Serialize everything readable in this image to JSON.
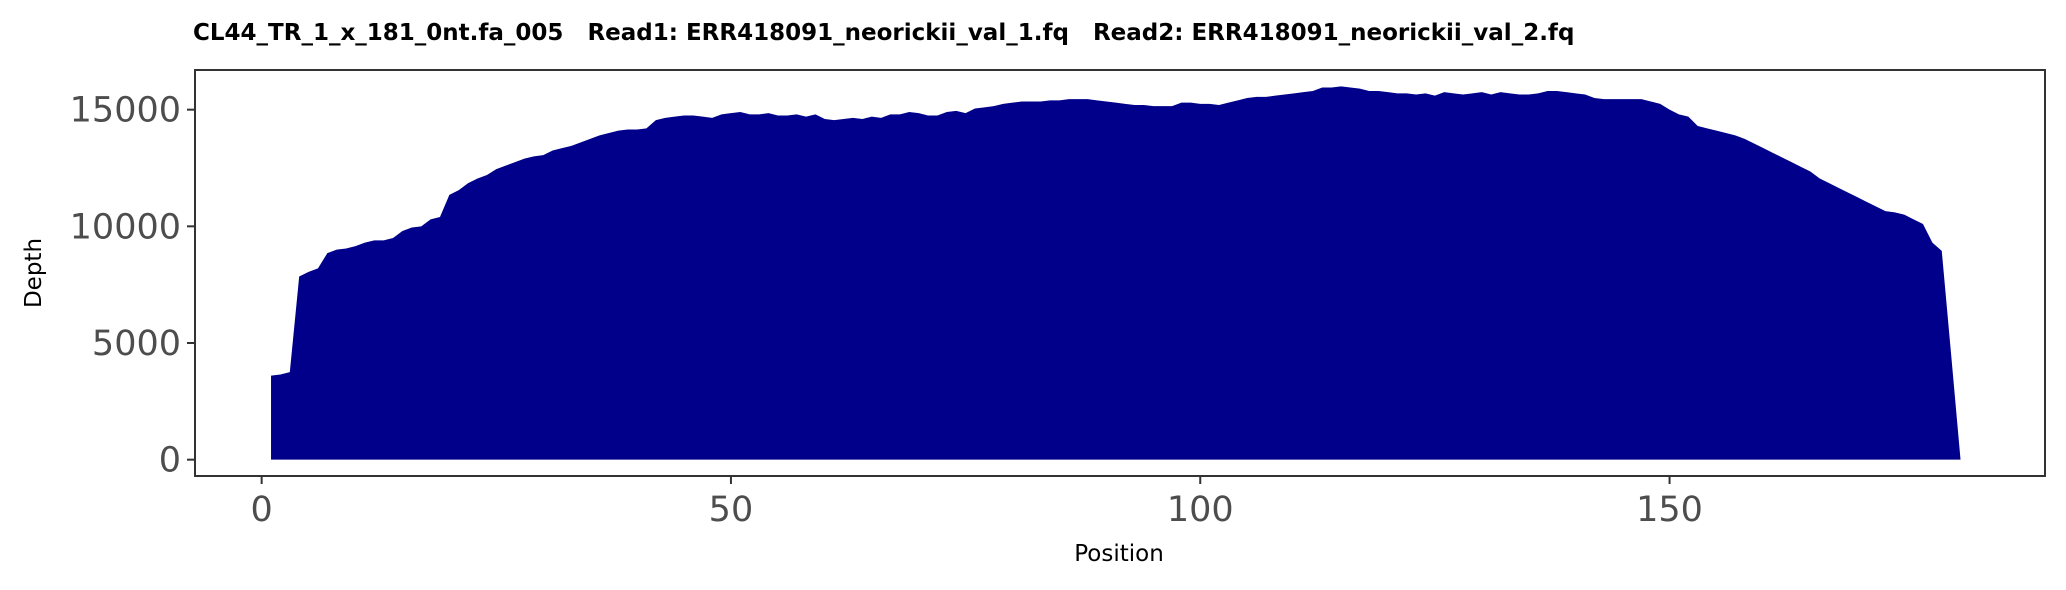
{
  "chart_data": {
    "type": "area",
    "title": "CL44_TR_1_x_181_0nt.fa_005   Read1: ERR418091_neorickii_val_1.fq   Read2: ERR418091_neorickii_val_2.fq",
    "xlabel": "Position",
    "ylabel": "Depth",
    "xlim": [
      -7.1,
      190
    ],
    "ylim": [
      -700,
      16700
    ],
    "xticks": [
      0,
      50,
      100,
      150
    ],
    "yticks": [
      0,
      5000,
      10000,
      15000
    ],
    "xtick_labels": [
      "0",
      "50",
      "100",
      "150"
    ],
    "ytick_labels": [
      "0",
      "5000",
      "10000",
      "15000"
    ],
    "grid": false,
    "legend": "none",
    "fill_color": "#00008B",
    "x": [
      1,
      2,
      3,
      4,
      5,
      6,
      7,
      8,
      9,
      10,
      11,
      12,
      13,
      14,
      15,
      16,
      17,
      18,
      19,
      20,
      21,
      22,
      23,
      24,
      25,
      26,
      27,
      28,
      29,
      30,
      31,
      32,
      33,
      34,
      35,
      36,
      37,
      38,
      39,
      40,
      41,
      42,
      43,
      44,
      45,
      46,
      47,
      48,
      49,
      50,
      51,
      52,
      53,
      54,
      55,
      56,
      57,
      58,
      59,
      60,
      61,
      62,
      63,
      64,
      65,
      66,
      67,
      68,
      69,
      70,
      71,
      72,
      73,
      74,
      75,
      76,
      77,
      78,
      79,
      80,
      81,
      82,
      83,
      84,
      85,
      86,
      87,
      88,
      89,
      90,
      91,
      92,
      93,
      94,
      95,
      96,
      97,
      98,
      99,
      100,
      101,
      102,
      103,
      104,
      105,
      106,
      107,
      108,
      109,
      110,
      111,
      112,
      113,
      114,
      115,
      116,
      117,
      118,
      119,
      120,
      121,
      122,
      123,
      124,
      125,
      126,
      127,
      128,
      129,
      130,
      131,
      132,
      133,
      134,
      135,
      136,
      137,
      138,
      139,
      140,
      141,
      142,
      143,
      144,
      145,
      146,
      147,
      148,
      149,
      150,
      151,
      152,
      153,
      154,
      155,
      156,
      157,
      158,
      159,
      160,
      161,
      162,
      163,
      164,
      165,
      166,
      167,
      168,
      169,
      170,
      171,
      172,
      173,
      174,
      175,
      176,
      177,
      178,
      179,
      180,
      181
    ],
    "y": [
      3600,
      3650,
      3750,
      7850,
      8050,
      8200,
      8850,
      9000,
      9050,
      9150,
      9300,
      9400,
      9400,
      9500,
      9800,
      9950,
      10000,
      10300,
      10400,
      11350,
      11550,
      11850,
      12050,
      12200,
      12450,
      12600,
      12750,
      12900,
      13000,
      13050,
      13250,
      13350,
      13450,
      13600,
      13750,
      13900,
      14000,
      14100,
      14150,
      14150,
      14200,
      14550,
      14650,
      14700,
      14750,
      14750,
      14700,
      14650,
      14800,
      14850,
      14900,
      14800,
      14800,
      14850,
      14750,
      14750,
      14800,
      14700,
      14800,
      14600,
      14550,
      14600,
      14650,
      14600,
      14700,
      14650,
      14800,
      14800,
      14900,
      14850,
      14750,
      14750,
      14900,
      14950,
      14850,
      15050,
      15100,
      15150,
      15250,
      15300,
      15350,
      15350,
      15350,
      15400,
      15400,
      15450,
      15450,
      15450,
      15400,
      15350,
      15300,
      15250,
      15200,
      15200,
      15150,
      15150,
      15150,
      15300,
      15300,
      15250,
      15250,
      15200,
      15300,
      15400,
      15500,
      15550,
      15550,
      15600,
      15650,
      15700,
      15750,
      15800,
      15950,
      15950,
      16000,
      15950,
      15900,
      15800,
      15800,
      15750,
      15700,
      15700,
      15650,
      15700,
      15600,
      15750,
      15700,
      15650,
      15700,
      15750,
      15650,
      15750,
      15700,
      15650,
      15650,
      15700,
      15800,
      15800,
      15750,
      15700,
      15650,
      15500,
      15450,
      15450,
      15450,
      15450,
      15450,
      15350,
      15250,
      15000,
      14800,
      14700,
      14300,
      14200,
      14100,
      14000,
      13900,
      13750,
      13550,
      13350,
      13150,
      12950,
      12750,
      12550,
      12350,
      12050,
      11850,
      11650,
      11450,
      11250,
      11050,
      10850,
      10650,
      10600,
      10500,
      10300,
      10100,
      9300,
      8950,
      4500,
      0
    ]
  }
}
